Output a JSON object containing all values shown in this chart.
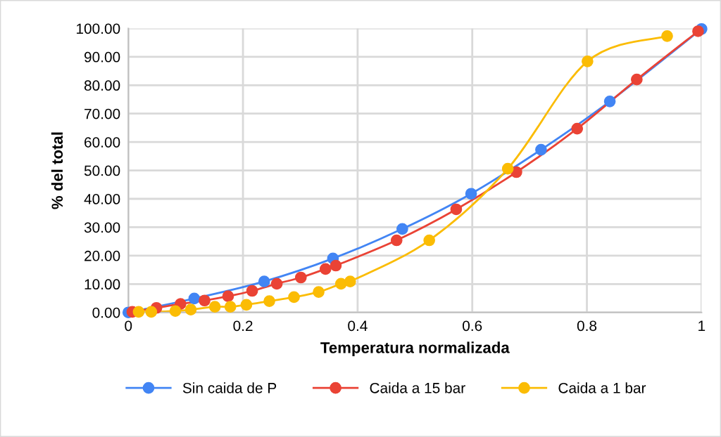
{
  "chart_data": {
    "type": "line",
    "xlabel": "Temperatura normalizada",
    "ylabel": "% del total",
    "xlim": [
      0,
      1
    ],
    "xticks": [
      0,
      0.2,
      0.4,
      0.6,
      0.8,
      1
    ],
    "ylim": [
      0,
      100
    ],
    "yticks": [
      {
        "value": 0,
        "label": "0.00"
      },
      {
        "value": 10,
        "label": "10.00"
      },
      {
        "value": 20,
        "label": "20.00"
      },
      {
        "value": 30,
        "label": "30.00"
      },
      {
        "value": 40,
        "label": "40.00"
      },
      {
        "value": 50,
        "label": "50.00"
      },
      {
        "value": 60,
        "label": "60.00"
      },
      {
        "value": 70,
        "label": "70.00"
      },
      {
        "value": 80,
        "label": "80.00"
      },
      {
        "value": 90,
        "label": "90.00"
      },
      {
        "value": 100,
        "label": "100.00"
      }
    ],
    "grid": true,
    "legend": "bottom",
    "marker": "circle",
    "line_style": "solid",
    "series": [
      {
        "name": "Sin caida de P",
        "color": "#4285f4",
        "x": [
          0,
          0.115,
          0.237,
          0.357,
          0.478,
          0.598,
          0.72,
          0.84,
          1.0
        ],
        "values": [
          0,
          4.9,
          10.9,
          19.0,
          29.4,
          41.8,
          57.3,
          74.3,
          99.8
        ]
      },
      {
        "name": "Caida a 15 bar",
        "color": "#ea4335",
        "x": [
          0.007,
          0.049,
          0.091,
          0.133,
          0.174,
          0.216,
          0.259,
          0.301,
          0.344,
          0.362,
          0.468,
          0.572,
          0.677,
          0.783,
          0.887,
          0.994
        ],
        "values": [
          0.2,
          1.6,
          3.0,
          4.2,
          5.7,
          7.6,
          10.1,
          12.3,
          15.3,
          16.5,
          25.4,
          36.3,
          49.4,
          64.7,
          82.0,
          99.0
        ]
      },
      {
        "name": "Caida a 1 bar",
        "color": "#fbbc04",
        "x": [
          0.018,
          0.04,
          0.082,
          0.109,
          0.151,
          0.178,
          0.206,
          0.246,
          0.289,
          0.332,
          0.371,
          0.387,
          0.525,
          0.662,
          0.801,
          0.94
        ],
        "values": [
          0.2,
          0.2,
          0.5,
          1.0,
          2.0,
          2.0,
          2.7,
          4.0,
          5.4,
          7.2,
          10.1,
          10.9,
          25.4,
          50.6,
          88.4,
          97.3
        ]
      }
    ]
  }
}
